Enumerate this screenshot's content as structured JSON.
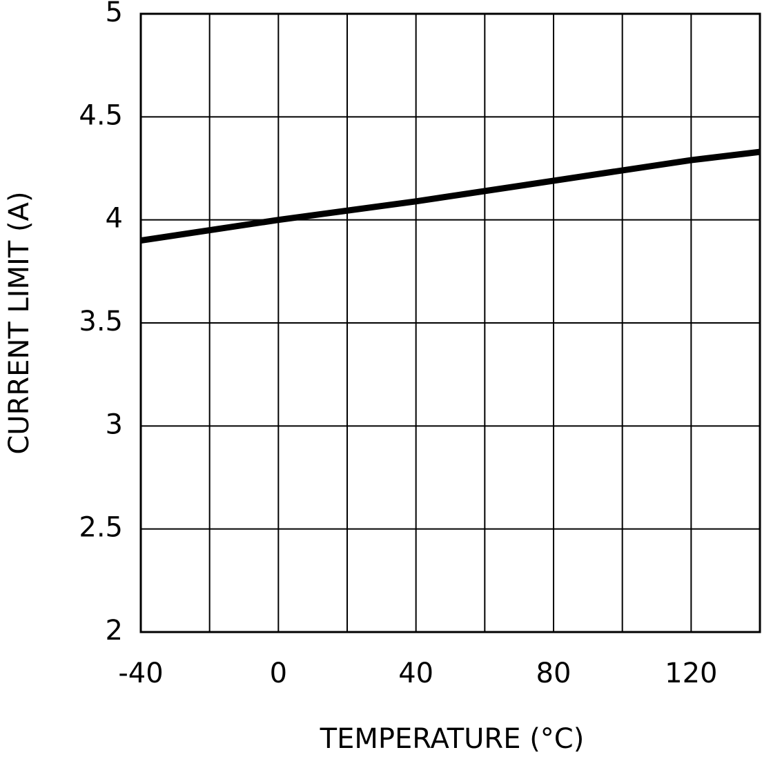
{
  "chart_data": {
    "type": "line",
    "x_label": "TEMPERATURE (°C)",
    "y_label": "CURRENT LIMIT (A)",
    "x": [
      -40,
      0,
      40,
      80,
      120,
      140
    ],
    "series": [
      {
        "values": [
          3.9,
          4.0,
          4.09,
          4.19,
          4.29,
          4.33
        ],
        "color": "#000000"
      }
    ],
    "xlim": [
      -40,
      140
    ],
    "xticks": [
      -40,
      0,
      40,
      80,
      120
    ],
    "xminor": [
      -20,
      20,
      60,
      100,
      140
    ],
    "ylim": [
      2,
      5
    ],
    "yticks": [
      2,
      2.5,
      3,
      3.5,
      4,
      4.5,
      5
    ],
    "grid": true
  }
}
